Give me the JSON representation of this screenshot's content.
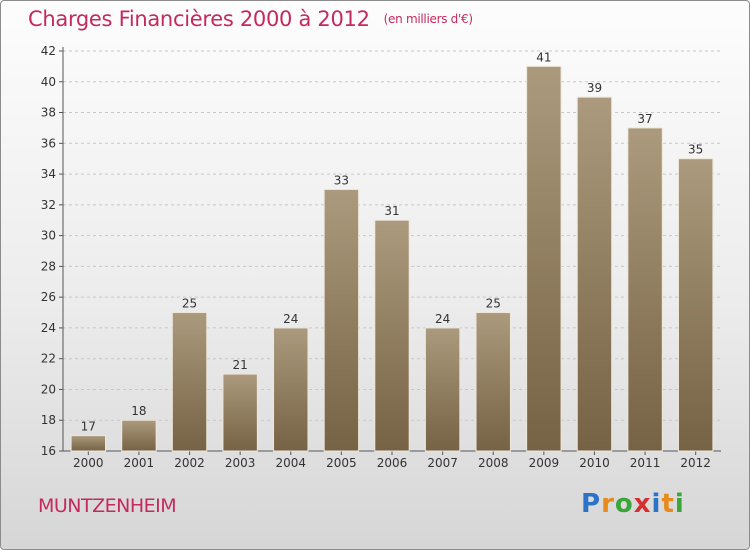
{
  "header": {
    "title": "Charges Financières 2000 à 2012",
    "unit": "(en milliers d'€)"
  },
  "commune": "MUNTZENHEIM",
  "logo": {
    "letters": [
      "P",
      "r",
      "o",
      "x",
      "i",
      "t",
      "i"
    ],
    "colors": [
      "#2a73c9",
      "#e88a1a",
      "#3aa63a",
      "#d62f2f",
      "#2a73c9",
      "#e88a1a",
      "#3aa63a"
    ]
  },
  "chart_data": {
    "type": "bar",
    "categories": [
      "2000",
      "2001",
      "2002",
      "2003",
      "2004",
      "2005",
      "2006",
      "2007",
      "2008",
      "2009",
      "2010",
      "2011",
      "2012"
    ],
    "values": [
      17,
      18,
      25,
      21,
      24,
      33,
      31,
      24,
      25,
      41,
      39,
      37,
      35
    ],
    "ylim": [
      16,
      42
    ],
    "yticks": [
      16,
      18,
      20,
      22,
      24,
      26,
      28,
      30,
      32,
      34,
      36,
      38,
      40,
      42
    ],
    "grid": true,
    "bar_color_top": "#ab9a7d",
    "bar_color_bottom": "#766244"
  }
}
